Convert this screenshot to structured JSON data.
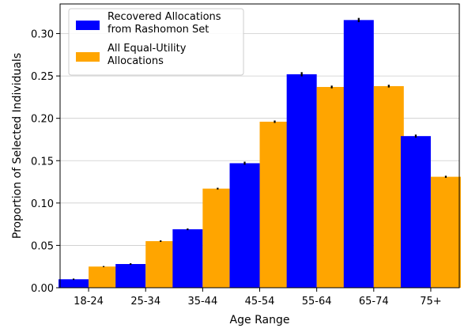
{
  "chart_data": {
    "type": "bar",
    "title": "",
    "xlabel": "Age Range",
    "ylabel": "Proportion of Selected Individuals",
    "categories": [
      "18-24",
      "25-34",
      "35-44",
      "45-54",
      "55-64",
      "65-74",
      "75+"
    ],
    "ylim": [
      0,
      0.335
    ],
    "yticks": [
      "0.00",
      "0.05",
      "0.10",
      "0.15",
      "0.20",
      "0.25",
      "0.30"
    ],
    "grid": "horizontal",
    "legend_placement": "top-left",
    "series": [
      {
        "name": "Recovered Allocations\nfrom Rashomon Set",
        "color": "#0000ff",
        "values": [
          0.01,
          0.028,
          0.069,
          0.147,
          0.252,
          0.316,
          0.179
        ],
        "errors": [
          0.0008,
          0.0009,
          0.001,
          0.0018,
          0.0025,
          0.0025,
          0.0018
        ]
      },
      {
        "name": "All Equal-Utility\nAllocations",
        "color": "#ffa500",
        "values": [
          0.025,
          0.055,
          0.117,
          0.196,
          0.237,
          0.238,
          0.131
        ],
        "errors": [
          0.0006,
          0.0009,
          0.001,
          0.0014,
          0.0016,
          0.0016,
          0.0012
        ]
      }
    ]
  }
}
